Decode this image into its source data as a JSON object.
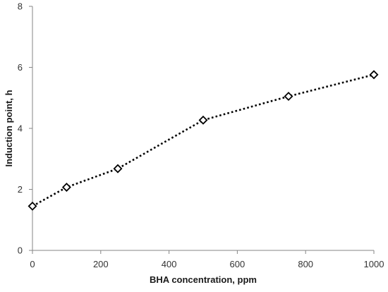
{
  "chart_data": {
    "type": "scatter",
    "title": "",
    "xlabel": "BHA concentration, ppm",
    "ylabel": "Induction point, h",
    "xlim": [
      0,
      1000
    ],
    "ylim": [
      0,
      8
    ],
    "x_ticks": [
      0,
      200,
      400,
      600,
      800,
      1000
    ],
    "y_ticks": [
      0,
      2,
      4,
      6,
      8
    ],
    "grid": false,
    "legend": "none",
    "series": [
      {
        "marker": "open-diamond",
        "line": "dotted",
        "color": "#000000",
        "x": [
          0,
          100,
          250,
          500,
          750,
          1000
        ],
        "y": [
          1.45,
          2.07,
          2.68,
          4.27,
          5.05,
          5.76
        ]
      }
    ]
  }
}
